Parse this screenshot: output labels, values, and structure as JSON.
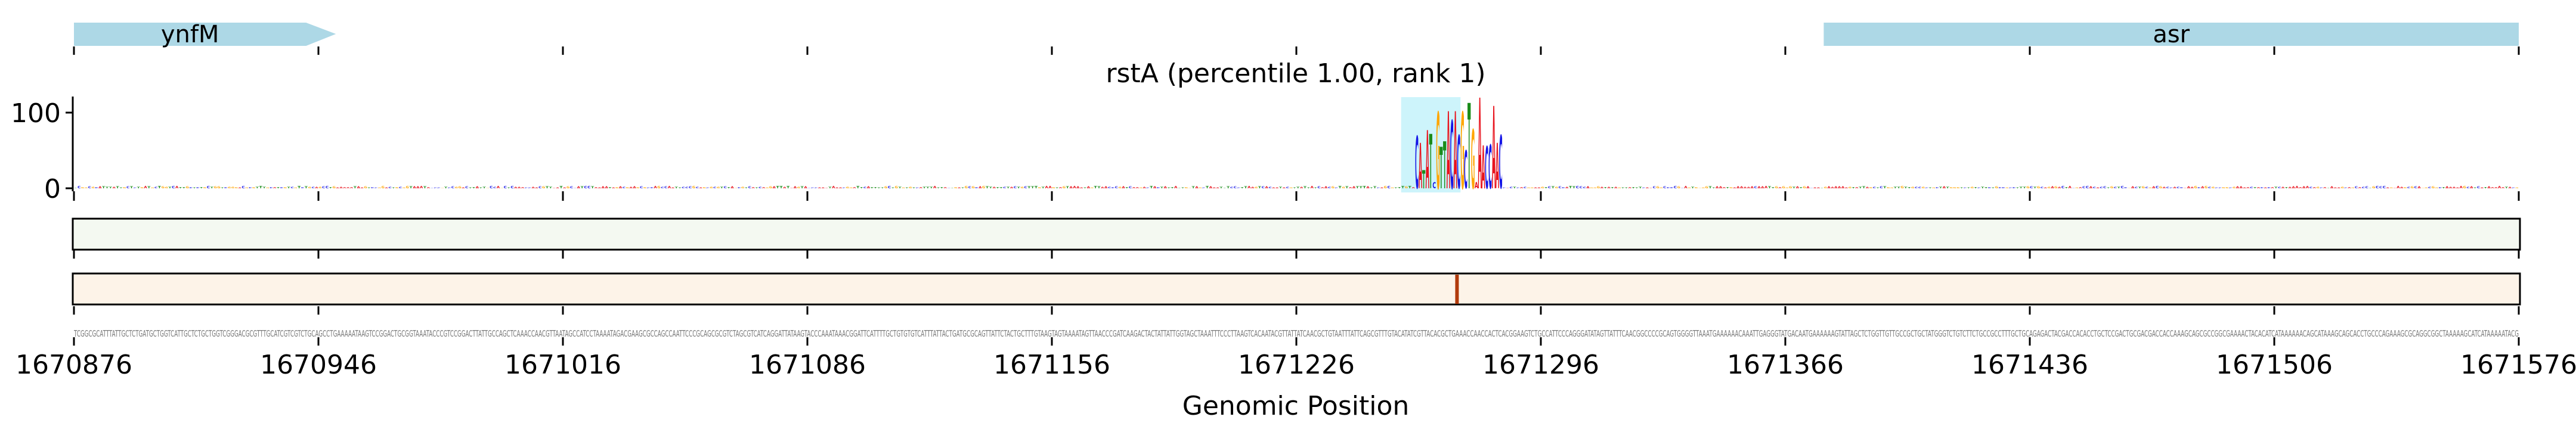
{
  "chart_data": {
    "type": "sequence-logo",
    "title": "rstA (percentile 1.00, rank 1)",
    "xlabel": "Genomic Position",
    "xlim": [
      1670876,
      1671576
    ],
    "xticks": [
      "1670876",
      "1670946",
      "1671016",
      "1671086",
      "1671156",
      "1671226",
      "1671296",
      "1671366",
      "1671436",
      "1671506",
      "1671576"
    ],
    "ylim": [
      -4,
      121
    ],
    "yticks": [
      "0",
      "100"
    ],
    "genes": [
      {
        "name": "ynfM",
        "start": 1670876,
        "end": 1670951,
        "strand": "+"
      },
      {
        "name": "asr",
        "start": 1671377,
        "end": 1671576,
        "strand": "none"
      }
    ],
    "highlight_region": [
      1671256,
      1671273
    ],
    "motif": {
      "start": 1671260,
      "letters": [
        "C",
        "A",
        "T",
        "A",
        "T",
        "C",
        "G",
        "T",
        "T",
        "A",
        "C",
        "A",
        "C",
        "G",
        "C",
        "T",
        "G",
        "A",
        "A",
        "A",
        "C",
        "C",
        "A",
        "A",
        "C"
      ],
      "heights": [
        69,
        60,
        24,
        77,
        72,
        8,
        101,
        55,
        62,
        102,
        90,
        102,
        70,
        101,
        50,
        113,
        78,
        8,
        120,
        57,
        56,
        58,
        109,
        60,
        70
      ]
    },
    "marker_position": 1671272,
    "sequence": "TCGGCGCATTTATTGCTCTGATGCTGGTCATTGCTCTGCTGGTCGGGACGCGTTTGCATCGTCGTCTGCAGCCTGAAAAATAAGTCCGGACTGCGGTAAATACCCGTCCGGACTTATTGCCAGCTCAAACCAACGTTAATAGCCATCCTAAAATAGACGAAGCGCCAGCCAATTCCCGCAGCGCGTCTAGCGTCATCAGGATTATAAGTACCCAAATAAACGGATTCATTTTGCTGTGTGTCATTTATTACTGATGCGCAGTTATTCTACTGCTTTGTAAGTAGTAAAATAGTTAACCCGATCAAGACTACTATTATTGGTAGCTAAATTTCCCTTAAGTCACAATACGTTATTATCAACGCTGTAATTTATTCAGCGTTTGTACATATCGTTACACGCTGAAACCAACCACTCACGGAAGTCTGCCATTCCCAGGGATATAGTTATTTCAACGGCCCCGCAGTGGGGTTAAATGAAAAAACAAATTGAGGGTATGACAATGAAAAAAGTATTAGCTCTGGTTGTTGCCGCTGCTATGGGTCTGTCTTCTGCCGCCTTTGCTGCAGAGACTACGACCACACCTGCTCCGACTGCGACGACCACCAAAGCAGCGCCGGCGAAAACTACACATCATAAAAAACAGCATAAAGCAGCACCTGCCCAGAAAGCGCAGGCGGCTAAAAAGCATCATAAAAATACG",
    "colors": {
      "A": "#e8141e",
      "C": "#1414e6",
      "G": "#ffa500",
      "T": "#1a8c1a",
      "gene": "#add8e6",
      "highlight": "#cdf4fb",
      "track1_fill": "#f4f9f1",
      "track2_fill": "#fdf3e8",
      "marker": "#b13a0b",
      "sequence_text": "#777777"
    }
  }
}
